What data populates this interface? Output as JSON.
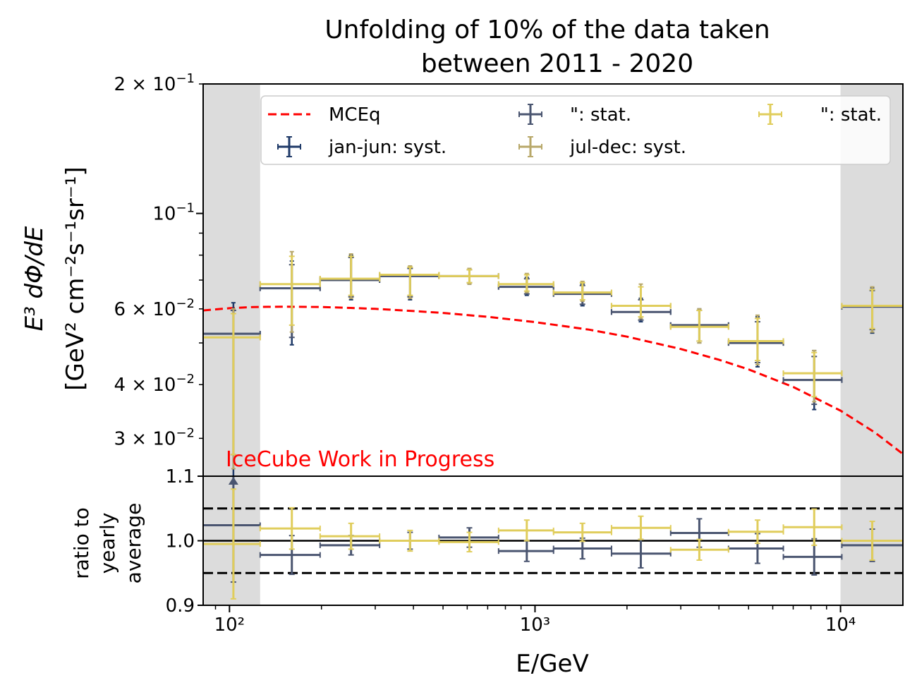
{
  "chart_data": {
    "type": "scatter",
    "title_line1": "Unfolding of 10% of the data taken",
    "title_line2": "between  2011 - 2020",
    "xlabel": "E/GeV",
    "ylabel_line1": "E³ dΦ/dE",
    "ylabel_line2": "[GeV² cm⁻²s⁻¹sr⁻¹]",
    "ratio_ylabel_line1": "ratio to",
    "ratio_ylabel_line2": "yearly",
    "ratio_ylabel_line3": "average",
    "watermark": "IceCube Work in Progress",
    "x_scale": "log",
    "xlim": [
      82,
      16000
    ],
    "x_tick_labels": [
      {
        "value": 100,
        "label": "10²"
      },
      {
        "value": 1000,
        "label": "10³"
      },
      {
        "value": 10000,
        "label": "10⁴"
      }
    ],
    "top_panel": {
      "y_scale": "log",
      "ylim": [
        0.0245,
        0.2
      ],
      "y_tick_labels": [
        {
          "value": 0.2,
          "mant": "2 × 10",
          "exp": "−1"
        },
        {
          "value": 0.1,
          "mant": "10",
          "exp": "−1"
        },
        {
          "value": 0.06,
          "mant": "6 × 10",
          "exp": "−2"
        },
        {
          "value": 0.04,
          "mant": "4 × 10",
          "exp": "−2"
        },
        {
          "value": 0.03,
          "mant": "3 × 10",
          "exp": "−2"
        }
      ],
      "shaded_regions": [
        [
          82,
          126
        ],
        [
          10000,
          16000
        ]
      ],
      "grid": false
    },
    "ratio_panel": {
      "ylim": [
        0.9,
        1.1
      ],
      "y_ticks": [
        1.1,
        1.0,
        0.9
      ],
      "y_tick_labels": [
        "1.1",
        "1.0",
        "0.9"
      ],
      "reference_lines": [
        1.05,
        1.0,
        0.95
      ]
    },
    "legend": {
      "placement": "top",
      "entries": [
        {
          "label": "MCEq",
          "color": "#ff0000",
          "style": "dashed"
        },
        {
          "label": "jan-jun: syst.",
          "color": "#1f3a68",
          "style": "errorbar"
        },
        {
          "label": "\": stat.",
          "color": "#4a5570",
          "style": "errorbar"
        },
        {
          "label": "jul-dec: syst.",
          "color": "#b8a86a",
          "style": "errorbar"
        },
        {
          "label": "\": stat.",
          "color": "#e0cd5c",
          "style": "errorbar"
        }
      ]
    },
    "bin_edges": [
      82,
      126,
      198,
      310,
      485,
      760,
      1150,
      1780,
      2780,
      4300,
      6500,
      10100,
      16000
    ],
    "bin_centers": [
      103,
      160,
      250,
      390,
      610,
      940,
      1430,
      2220,
      3450,
      5350,
      8200,
      12700
    ],
    "model": {
      "name": "MCEq",
      "color": "#ff0000",
      "x": [
        82,
        100,
        120,
        150,
        200,
        250,
        300,
        400,
        500,
        700,
        1000,
        1500,
        2000,
        3000,
        4000,
        5000,
        7000,
        10000,
        13000,
        16000
      ],
      "y": [
        0.0595,
        0.0602,
        0.0606,
        0.0607,
        0.0606,
        0.0603,
        0.06,
        0.0593,
        0.0587,
        0.0575,
        0.0559,
        0.0537,
        0.0517,
        0.0484,
        0.0457,
        0.0434,
        0.0395,
        0.0348,
        0.0309,
        0.0276
      ]
    },
    "series": [
      {
        "name": "jan-jun",
        "syst_color": "#1f3a68",
        "stat_color": "#4a5570",
        "values": [
          0.0525,
          0.067,
          0.07,
          0.0715,
          0.0715,
          0.0675,
          0.065,
          0.059,
          0.055,
          0.05,
          0.041,
          0.0607
        ],
        "syst_err_up": [
          0.0095,
          0.0105,
          0.01,
          0.0035,
          0.003,
          0.0035,
          0.0035,
          0.0045,
          0.005,
          0.0075,
          0.007,
          0.0065
        ],
        "syst_err_down": [
          0.028,
          0.0175,
          0.007,
          0.0085,
          0.003,
          0.003,
          0.004,
          0.003,
          0.005,
          0.006,
          0.006,
          0.008
        ],
        "stat_err_up": [
          0.007,
          0.009,
          0.009,
          0.003,
          0.0025,
          0.003,
          0.003,
          0.004,
          0.0045,
          0.006,
          0.0055,
          0.0055
        ],
        "stat_err_down": [
          0.025,
          0.0155,
          0.006,
          0.0075,
          0.0025,
          0.0025,
          0.0035,
          0.0025,
          0.0045,
          0.005,
          0.005,
          0.007
        ],
        "ratio": [
          1.024,
          0.978,
          0.993,
          1.0,
          1.005,
          0.984,
          0.988,
          0.98,
          1.012,
          0.988,
          0.975,
          0.993
        ],
        "ratio_err": [
          0.088,
          0.03,
          0.015,
          0.013,
          0.015,
          0.016,
          0.016,
          0.022,
          0.022,
          0.023,
          0.028,
          0.025
        ]
      },
      {
        "name": "jul-dec",
        "syst_color": "#b8a86a",
        "stat_color": "#e0cd5c",
        "values": [
          0.0515,
          0.0685,
          0.0705,
          0.072,
          0.0715,
          0.0685,
          0.0655,
          0.061,
          0.0545,
          0.0505,
          0.0425,
          0.061
        ],
        "syst_err_up": [
          0.0085,
          0.013,
          0.01,
          0.0035,
          0.003,
          0.004,
          0.004,
          0.0075,
          0.0055,
          0.0075,
          0.0055,
          0.0065
        ],
        "syst_err_down": [
          0.026,
          0.0155,
          0.007,
          0.0085,
          0.003,
          0.003,
          0.003,
          0.004,
          0.0045,
          0.006,
          0.006,
          0.008
        ],
        "stat_err_up": [
          0.007,
          0.011,
          0.009,
          0.003,
          0.0025,
          0.0035,
          0.0035,
          0.0065,
          0.005,
          0.0065,
          0.005,
          0.0055
        ],
        "stat_err_down": [
          0.024,
          0.0135,
          0.006,
          0.0075,
          0.0025,
          0.0025,
          0.0025,
          0.0035,
          0.004,
          0.005,
          0.005,
          0.007
        ],
        "ratio": [
          0.995,
          1.019,
          1.007,
          1.0,
          0.998,
          1.016,
          1.013,
          1.02,
          0.986,
          1.014,
          1.021,
          1.0
        ],
        "ratio_err": [
          0.085,
          0.032,
          0.02,
          0.016,
          0.015,
          0.016,
          0.014,
          0.018,
          0.016,
          0.018,
          0.028,
          0.03
        ]
      }
    ]
  }
}
